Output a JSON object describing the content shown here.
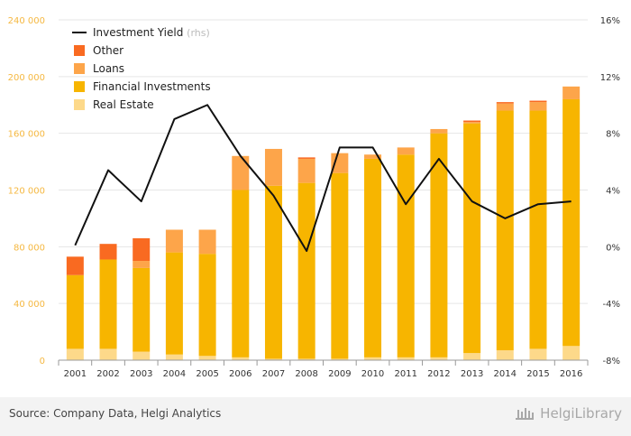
{
  "chart_data": {
    "type": "bar",
    "stacked": true,
    "categories": [
      "2001",
      "2002",
      "2003",
      "2004",
      "2005",
      "2006",
      "2007",
      "2008",
      "2009",
      "2010",
      "2011",
      "2012",
      "2013",
      "2014",
      "2015",
      "2016"
    ],
    "series": [
      {
        "name": "Real Estate",
        "color": "#fdd98a",
        "values": [
          8000,
          8000,
          6000,
          4000,
          3000,
          2000,
          1000,
          1000,
          1000,
          2000,
          2000,
          2000,
          5000,
          7000,
          8000,
          10000
        ]
      },
      {
        "name": "Financial Investments",
        "color": "#f7b500",
        "values": [
          52000,
          63000,
          59000,
          72000,
          72000,
          118000,
          122000,
          124000,
          131000,
          140000,
          143000,
          158000,
          162000,
          169000,
          168000,
          174000
        ]
      },
      {
        "name": "Loans",
        "color": "#fda54a",
        "values": [
          0,
          0,
          5000,
          16000,
          17000,
          24000,
          26000,
          17000,
          14000,
          3000,
          5000,
          3000,
          1000,
          5000,
          6000,
          9000
        ]
      },
      {
        "name": "Other",
        "color": "#f96a21",
        "values": [
          13000,
          11000,
          16000,
          0,
          0,
          0,
          0,
          1000,
          0,
          0,
          0,
          0,
          1000,
          1000,
          1000,
          0
        ]
      }
    ],
    "line_series": {
      "name": "Investment Yield",
      "note": "(rhs)",
      "color": "#111111",
      "values": [
        0.1,
        5.4,
        3.2,
        9.0,
        10.0,
        6.4,
        3.6,
        -0.3,
        7.0,
        7.0,
        3.0,
        6.2,
        3.2,
        2.0,
        3.0,
        3.2
      ]
    },
    "y_left": {
      "ylim": [
        0,
        240000
      ],
      "ticks": [
        0,
        40000,
        80000,
        120000,
        160000,
        200000,
        240000
      ],
      "tick_labels": [
        "0",
        "40 000",
        "80 000",
        "120 000",
        "160 000",
        "200 000",
        "240 000"
      ]
    },
    "y_right": {
      "ylim": [
        -8,
        16
      ],
      "ticks": [
        -8,
        -4,
        0,
        4,
        8,
        12,
        16
      ],
      "tick_labels": [
        "-8%",
        "-4%",
        "0%",
        "4%",
        "8%",
        "12%",
        "16%"
      ]
    },
    "legend_position": "top-left",
    "grid": true
  },
  "footer": {
    "source": "Source: Company Data, Helgi Analytics",
    "brand": "HelgiLibrary"
  }
}
